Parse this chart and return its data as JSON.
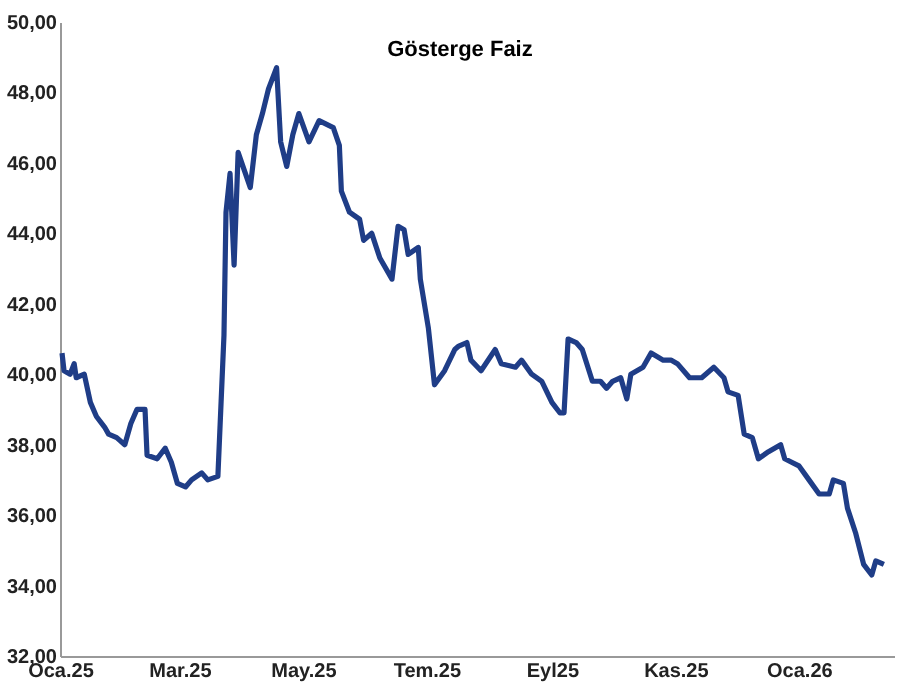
{
  "chart_data": {
    "type": "line",
    "title": "Gösterge Faiz",
    "x": [
      "2025-01-02",
      "2025-01-03",
      "2025-01-06",
      "2025-01-08",
      "2025-01-09",
      "2025-01-13",
      "2025-01-16",
      "2025-01-19",
      "2025-01-23",
      "2025-01-25",
      "2025-01-29",
      "2025-02-02",
      "2025-02-05",
      "2025-02-08",
      "2025-02-12",
      "2025-02-13",
      "2025-02-18",
      "2025-02-22",
      "2025-02-25",
      "2025-02-28",
      "2025-03-04",
      "2025-03-07",
      "2025-03-12",
      "2025-03-15",
      "2025-03-20",
      "2025-03-23",
      "2025-03-24",
      "2025-03-26",
      "2025-03-28",
      "2025-03-30",
      "2025-04-05",
      "2025-04-08",
      "2025-04-11",
      "2025-04-14",
      "2025-04-18",
      "2025-04-20",
      "2025-04-23",
      "2025-04-26",
      "2025-04-29",
      "2025-05-04",
      "2025-05-09",
      "2025-05-16",
      "2025-05-19",
      "2025-05-20",
      "2025-05-24",
      "2025-05-29",
      "2025-05-31",
      "2025-06-04",
      "2025-06-08",
      "2025-06-14",
      "2025-06-17",
      "2025-06-20",
      "2025-06-22",
      "2025-06-27",
      "2025-06-28",
      "2025-07-02",
      "2025-07-05",
      "2025-07-10",
      "2025-07-15",
      "2025-07-17",
      "2025-07-21",
      "2025-07-23",
      "2025-07-28",
      "2025-08-04",
      "2025-08-07",
      "2025-08-14",
      "2025-08-17",
      "2025-08-22",
      "2025-08-27",
      "2025-09-01",
      "2025-09-05",
      "2025-09-07",
      "2025-09-09",
      "2025-09-13",
      "2025-09-16",
      "2025-09-21",
      "2025-09-25",
      "2025-09-28",
      "2025-10-01",
      "2025-10-05",
      "2025-10-08",
      "2025-10-10",
      "2025-10-16",
      "2025-10-20",
      "2025-10-26",
      "2025-10-30",
      "2025-11-02",
      "2025-11-08",
      "2025-11-14",
      "2025-11-20",
      "2025-11-25",
      "2025-11-27",
      "2025-12-02",
      "2025-12-05",
      "2025-12-09",
      "2025-12-12",
      "2025-12-17",
      "2025-12-23",
      "2025-12-25",
      "2026-01-01",
      "2026-01-06",
      "2026-01-11",
      "2026-01-16",
      "2026-01-18",
      "2026-01-23",
      "2026-01-25",
      "2026-01-29",
      "2026-02-02",
      "2026-02-06",
      "2026-02-08",
      "2026-02-12"
    ],
    "series": [
      {
        "color": "#1f3d87",
        "values": [
          40.6,
          40.1,
          40.0,
          40.3,
          39.9,
          40.0,
          39.2,
          38.8,
          38.5,
          38.3,
          38.2,
          38.0,
          38.6,
          39.0,
          39.0,
          37.7,
          37.6,
          37.9,
          37.5,
          36.9,
          36.8,
          37.0,
          37.2,
          37.0,
          37.1,
          41.1,
          44.6,
          45.7,
          43.1,
          46.3,
          45.3,
          46.8,
          47.4,
          48.1,
          48.7,
          46.6,
          45.9,
          46.8,
          47.4,
          46.6,
          47.2,
          47.0,
          46.5,
          45.2,
          44.6,
          44.4,
          43.8,
          44.0,
          43.3,
          42.7,
          44.2,
          44.1,
          43.4,
          43.6,
          42.7,
          41.3,
          39.7,
          40.1,
          40.7,
          40.8,
          40.9,
          40.4,
          40.1,
          40.7,
          40.3,
          40.2,
          40.4,
          40.0,
          39.8,
          39.2,
          38.9,
          38.9,
          41.0,
          40.9,
          40.7,
          39.8,
          39.8,
          39.6,
          39.8,
          39.9,
          39.3,
          40.0,
          40.2,
          40.6,
          40.4,
          40.4,
          40.3,
          39.9,
          39.9,
          40.2,
          39.9,
          39.5,
          39.4,
          38.3,
          38.2,
          37.6,
          37.8,
          38.0,
          37.6,
          37.4,
          37.0,
          36.6,
          36.6,
          37.0,
          36.9,
          36.2,
          35.5,
          34.6,
          34.3,
          34.7,
          34.6
        ]
      }
    ],
    "xlim": [
      "2025-01-01",
      "2026-02-17"
    ],
    "xticks": [
      {
        "value": "2025-01-01",
        "label": "Oca.25"
      },
      {
        "value": "2025-03-01",
        "label": "Mar.25"
      },
      {
        "value": "2025-05-01",
        "label": "May.25"
      },
      {
        "value": "2025-07-01",
        "label": "Tem.25"
      },
      {
        "value": "2025-09-01",
        "label": "Eyl25"
      },
      {
        "value": "2025-11-01",
        "label": "Kas.25"
      },
      {
        "value": "2026-01-01",
        "label": "Oca.26"
      }
    ],
    "ylim": [
      32,
      50
    ],
    "yticks": [
      {
        "value": 32,
        "label": "32,00"
      },
      {
        "value": 34,
        "label": "34,00"
      },
      {
        "value": 36,
        "label": "36,00"
      },
      {
        "value": 38,
        "label": "38,00"
      },
      {
        "value": 40,
        "label": "40,00"
      },
      {
        "value": 42,
        "label": "42,00"
      },
      {
        "value": 44,
        "label": "44,00"
      },
      {
        "value": 46,
        "label": "46,00"
      },
      {
        "value": 48,
        "label": "48,00"
      },
      {
        "value": 50,
        "label": "50,00"
      }
    ],
    "grid": false,
    "legend": false,
    "line_style": "solid",
    "marker": "none"
  }
}
